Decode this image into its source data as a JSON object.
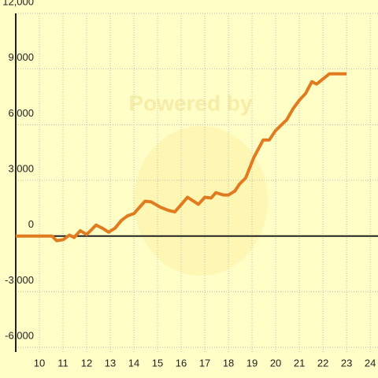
{
  "chart_data": {
    "type": "line",
    "watermark": "Powered by",
    "x": [
      9,
      10.53,
      10.73,
      11,
      11.27,
      11.47,
      11.73,
      12,
      12.4,
      12.67,
      12.93,
      13.2,
      13.47,
      13.73,
      14,
      14.47,
      14.73,
      15.13,
      15.47,
      15.73,
      16.27,
      16.73,
      17,
      17.27,
      17.47,
      17.8,
      18,
      18.27,
      18.47,
      18.73,
      19.07,
      19.47,
      19.73,
      20,
      20.47,
      20.73,
      21,
      21.27,
      21.53,
      21.73,
      22.27,
      23
    ],
    "values": [
      0,
      0,
      -250,
      -200,
      50,
      -80,
      290,
      80,
      590,
      420,
      210,
      420,
      840,
      1090,
      1210,
      1880,
      1840,
      1550,
      1380,
      1300,
      2090,
      1710,
      2090,
      2050,
      2340,
      2210,
      2210,
      2420,
      2800,
      3130,
      4220,
      5180,
      5180,
      5690,
      6270,
      6850,
      7320,
      7690,
      8320,
      8190,
      8740,
      8740
    ],
    "color": "#e07b20",
    "xlim": [
      9,
      24.33
    ],
    "xticks": [
      10,
      11,
      12,
      13,
      14,
      15,
      16,
      17,
      18,
      19,
      20,
      21,
      22,
      23,
      24
    ],
    "ylim": [
      -6250,
      12000
    ],
    "yticks": [
      {
        "value": 12000,
        "label": "12,000"
      },
      {
        "value": 9000,
        "label": "9,000"
      },
      {
        "value": 6000,
        "label": "6,000"
      },
      {
        "value": 3000,
        "label": "3,000"
      },
      0,
      {
        "value": -3000,
        "label": "-3,000"
      },
      {
        "value": -6000,
        "label": "-6,000"
      }
    ],
    "grid": true
  }
}
